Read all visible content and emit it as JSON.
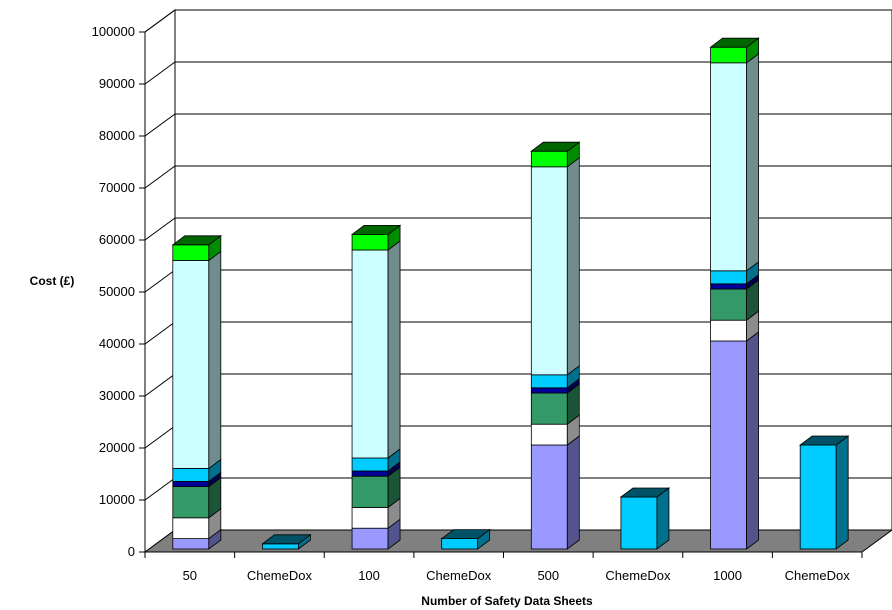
{
  "chart_data": {
    "type": "bar",
    "stacked": true,
    "three_d": true,
    "title": "",
    "xlabel": "Number of Safety Data Sheets",
    "ylabel": "Cost (£)",
    "ylim": [
      0,
      100000
    ],
    "yticks": [
      0,
      10000,
      20000,
      30000,
      40000,
      50000,
      60000,
      70000,
      80000,
      90000,
      100000
    ],
    "grid": true,
    "legend": "none",
    "categories": [
      "50",
      "ChemeDox",
      "100",
      "ChemeDox",
      "500",
      "ChemeDox",
      "1000",
      "ChemeDox"
    ],
    "series": [
      {
        "color": "#9999ff",
        "values": [
          2000,
          0,
          4000,
          0,
          20000,
          0,
          40000,
          0
        ]
      },
      {
        "color": "#ffffff",
        "values": [
          4000,
          0,
          4000,
          0,
          4000,
          0,
          4000,
          0
        ]
      },
      {
        "color": "#339966",
        "values": [
          6000,
          0,
          6000,
          0,
          6000,
          0,
          6000,
          0
        ]
      },
      {
        "color": "#000099",
        "values": [
          1000,
          0,
          1000,
          0,
          1000,
          0,
          1000,
          0
        ]
      },
      {
        "color": "#00ccff",
        "values": [
          2500,
          1000,
          2500,
          2000,
          2500,
          10000,
          2500,
          20000
        ]
      },
      {
        "color": "#ccffff",
        "values": [
          40000,
          0,
          40000,
          0,
          40000,
          0,
          40000,
          0
        ]
      },
      {
        "color": "#00ff00",
        "values": [
          3000,
          0,
          3000,
          0,
          3000,
          0,
          3000,
          0
        ]
      }
    ]
  }
}
